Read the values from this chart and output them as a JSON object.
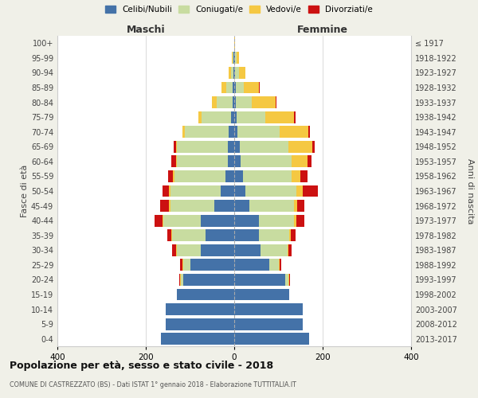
{
  "age_groups": [
    "0-4",
    "5-9",
    "10-14",
    "15-19",
    "20-24",
    "25-29",
    "30-34",
    "35-39",
    "40-44",
    "45-49",
    "50-54",
    "55-59",
    "60-64",
    "65-69",
    "70-74",
    "75-79",
    "80-84",
    "85-89",
    "90-94",
    "95-99",
    "100+"
  ],
  "birth_years": [
    "2013-2017",
    "2008-2012",
    "2003-2007",
    "1998-2002",
    "1993-1997",
    "1988-1992",
    "1983-1987",
    "1978-1982",
    "1973-1977",
    "1968-1972",
    "1963-1967",
    "1958-1962",
    "1953-1957",
    "1948-1952",
    "1943-1947",
    "1938-1942",
    "1933-1937",
    "1928-1932",
    "1923-1927",
    "1918-1922",
    "≤ 1917"
  ],
  "males": {
    "celibi": [
      165,
      155,
      155,
      130,
      115,
      100,
      75,
      65,
      75,
      45,
      30,
      20,
      15,
      15,
      12,
      8,
      4,
      3,
      2,
      1,
      0
    ],
    "coniugati": [
      0,
      0,
      0,
      0,
      5,
      15,
      55,
      75,
      85,
      100,
      115,
      115,
      115,
      115,
      100,
      65,
      35,
      15,
      5,
      2,
      0
    ],
    "vedovi": [
      0,
      0,
      0,
      0,
      2,
      2,
      2,
      2,
      2,
      2,
      2,
      3,
      2,
      2,
      5,
      8,
      12,
      10,
      5,
      2,
      0
    ],
    "divorziati": [
      0,
      0,
      0,
      0,
      2,
      5,
      8,
      10,
      18,
      20,
      15,
      12,
      10,
      5,
      0,
      0,
      0,
      0,
      0,
      0,
      0
    ]
  },
  "females": {
    "nubili": [
      170,
      155,
      155,
      125,
      115,
      80,
      60,
      55,
      55,
      35,
      25,
      20,
      15,
      12,
      8,
      6,
      4,
      3,
      2,
      1,
      0
    ],
    "coniugate": [
      0,
      0,
      0,
      0,
      8,
      20,
      60,
      70,
      80,
      100,
      115,
      110,
      115,
      110,
      95,
      65,
      35,
      18,
      8,
      4,
      0
    ],
    "vedove": [
      0,
      0,
      0,
      0,
      2,
      2,
      2,
      3,
      5,
      8,
      15,
      20,
      35,
      55,
      65,
      65,
      55,
      35,
      15,
      5,
      2
    ],
    "divorziate": [
      0,
      0,
      0,
      0,
      2,
      5,
      8,
      10,
      18,
      15,
      35,
      15,
      10,
      5,
      3,
      2,
      2,
      2,
      0,
      0,
      0
    ]
  },
  "colors": {
    "celibi": "#4472a8",
    "coniugati": "#c8dca0",
    "vedovi": "#f5c842",
    "divorziati": "#cc1111"
  },
  "xlim": 400,
  "title": "Popolazione per età, sesso e stato civile - 2018",
  "subtitle": "COMUNE DI CASTREZZATO (BS) - Dati ISTAT 1° gennaio 2018 - Elaborazione TUTTITALIA.IT",
  "ylabel_left": "Fasce di età",
  "ylabel_right": "Anni di nascita",
  "legend_labels": [
    "Celibi/Nubili",
    "Coniugati/e",
    "Vedovi/e",
    "Divorziati/e"
  ],
  "maschi_label": "Maschi",
  "femmine_label": "Femmine",
  "bg_color": "#f0f0e8",
  "plot_bg": "#ffffff"
}
